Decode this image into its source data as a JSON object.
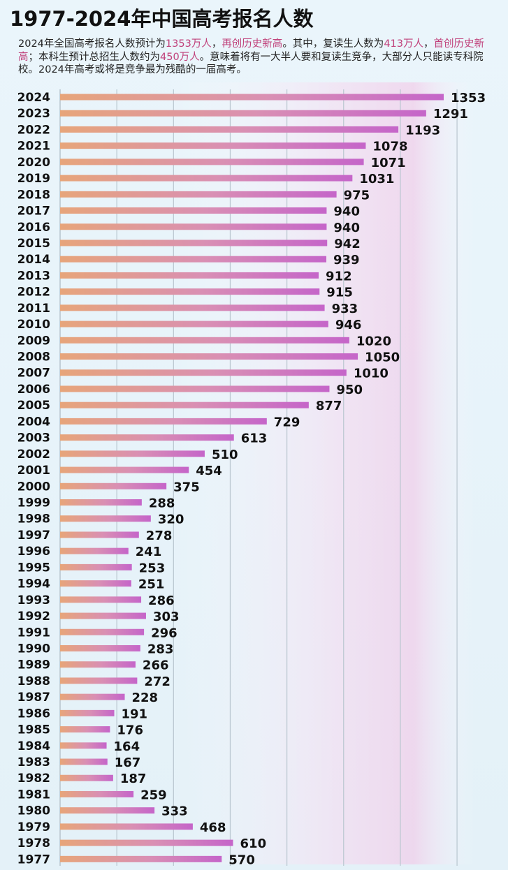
{
  "header": {
    "title": "1977-2024年中国高考报名人数",
    "desc_parts": [
      {
        "text": "2024年全国高考报名人数预计为",
        "hl": false
      },
      {
        "text": "1353万人",
        "hl": true
      },
      {
        "text": "，",
        "hl": false
      },
      {
        "text": "再创历史新高",
        "hl": true
      },
      {
        "text": "。其中，复读生人数为",
        "hl": false
      },
      {
        "text": "413万人",
        "hl": true
      },
      {
        "text": "，",
        "hl": false
      },
      {
        "text": "首创历史新高",
        "hl": true
      },
      {
        "text": "；本科生预计总招生人数约为",
        "hl": false
      },
      {
        "text": "450万人",
        "hl": true
      },
      {
        "text": "。意味着将有一大半人要和复读生竞争，大部分人只能读专科院校。2024年高考或将是竞争最为残酷的一届高考。",
        "hl": false
      }
    ]
  },
  "colors": {
    "bar_start": "#e7a57a",
    "bar_mid": "#d98fb4",
    "bar_end": "#c565c9",
    "grid": "#b9c6cf",
    "highlight": "#c0407a"
  },
  "chart_data": {
    "type": "bar",
    "orientation": "horizontal",
    "title": "1977-2024年中国高考报名人数",
    "xlim": [
      0,
      1400
    ],
    "grid": true,
    "categories": [
      "2024",
      "2023",
      "2022",
      "2021",
      "2020",
      "2019",
      "2018",
      "2017",
      "2016",
      "2015",
      "2014",
      "2013",
      "2012",
      "2011",
      "2010",
      "2009",
      "2008",
      "2007",
      "2006",
      "2005",
      "2004",
      "2003",
      "2002",
      "2001",
      "2000",
      "1999",
      "1998",
      "1997",
      "1996",
      "1995",
      "1994",
      "1993",
      "1992",
      "1991",
      "1990",
      "1989",
      "1988",
      "1987",
      "1986",
      "1985",
      "1984",
      "1983",
      "1982",
      "1981",
      "1980",
      "1979",
      "1978",
      "1977"
    ],
    "values": [
      1353,
      1291,
      1193,
      1078,
      1071,
      1031,
      975,
      940,
      940,
      942,
      939,
      912,
      915,
      933,
      946,
      1020,
      1050,
      1010,
      950,
      877,
      729,
      613,
      510,
      454,
      375,
      288,
      320,
      278,
      241,
      253,
      251,
      286,
      303,
      296,
      283,
      266,
      272,
      228,
      191,
      176,
      164,
      167,
      187,
      259,
      333,
      468,
      610,
      570
    ]
  }
}
